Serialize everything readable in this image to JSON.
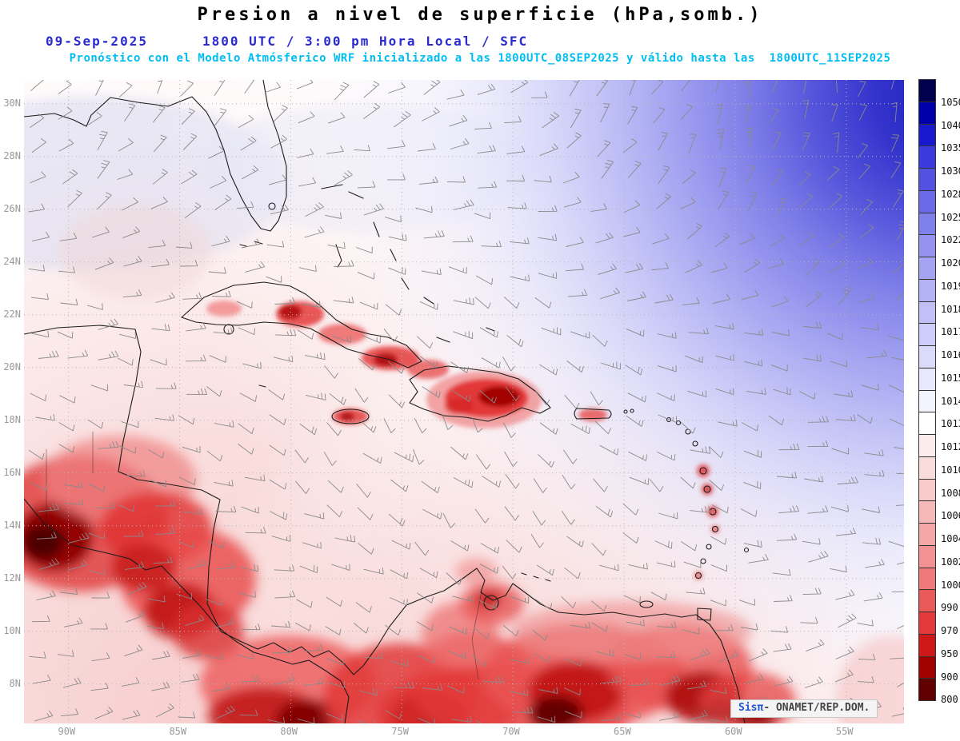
{
  "header": {
    "title": "Presion a nivel de superficie (hPa,somb.)",
    "date": "09-Sep-2025",
    "time_line": "1800 UTC / 3:00 pm Hora Local / SFC",
    "forecast_line": "Pronóstico con el Modelo Atmósferico WRF inicializado a las 1800UTC_08SEP2025 y válido hasta las  1800UTC_11SEP2025"
  },
  "map": {
    "lat_labels": [
      "30N",
      "28N",
      "26N",
      "24N",
      "22N",
      "20N",
      "18N",
      "16N",
      "14N",
      "12N",
      "10N",
      "8N"
    ],
    "lon_labels": [
      "90W",
      "85W",
      "80W",
      "75W",
      "70W",
      "65W",
      "60W",
      "55W"
    ],
    "attribution": {
      "brand": "Sisπ",
      "text": "- ONAMET/REP.DOM."
    }
  },
  "colorbar": {
    "unit": "hPa",
    "labels": [
      "1050",
      "1040",
      "1035",
      "1030",
      "1028",
      "1025",
      "1022",
      "1020",
      "1019",
      "1018",
      "1017",
      "1016",
      "1015",
      "1014",
      "1013",
      "1012",
      "1010",
      "1008",
      "1006",
      "1004",
      "1002",
      "1000",
      "990",
      "970",
      "950",
      "900",
      "800"
    ],
    "colors": [
      "#00004f",
      "#0000a8",
      "#1818cf",
      "#3a3ade",
      "#5252e2",
      "#6a6ae8",
      "#8080ec",
      "#9494f0",
      "#a4a4f3",
      "#b2b2f5",
      "#c0c0f7",
      "#cdcdf9",
      "#dadafb",
      "#e7e7fd",
      "#f4f4ff",
      "#ffffff",
      "#fdecec",
      "#fbdcdc",
      "#f9caca",
      "#f7b8b8",
      "#f5a6a6",
      "#f29292",
      "#ef7a7a",
      "#ea5a5a",
      "#e23a3a",
      "#cf1818",
      "#a00000",
      "#600000"
    ]
  },
  "colors": {
    "title_black": "#000000",
    "header_blue": "#2a2ace",
    "forecast_cyan": "#00bdf2",
    "axis_gray": "#999999",
    "barb_gray": "#8a8a8a"
  }
}
